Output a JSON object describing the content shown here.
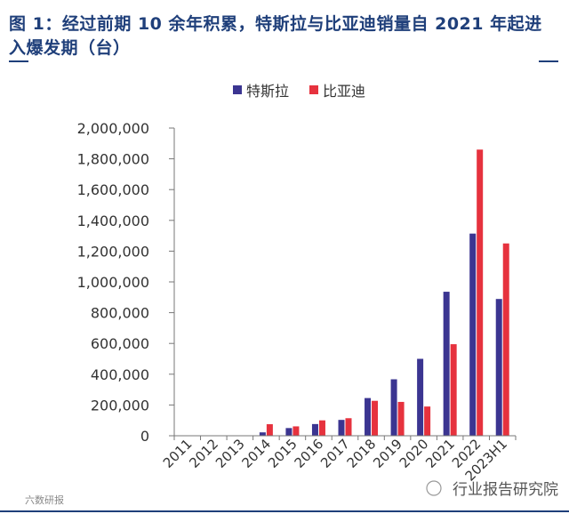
{
  "chart_data": {
    "type": "bar",
    "title": "图 1：经过前期 10 余年积累，特斯拉与比亚迪销量自 2021 年起进入爆发期（台）",
    "categories": [
      "2011",
      "2012",
      "2013",
      "2014",
      "2015",
      "2016",
      "2017",
      "2018",
      "2019",
      "2020",
      "2021",
      "2022",
      "2023H1"
    ],
    "series": [
      {
        "name": "特斯拉",
        "color": "#3b3591",
        "values": [
          0,
          0,
          0,
          22000,
          50000,
          76000,
          103000,
          245000,
          367000,
          500000,
          936000,
          1314000,
          889000
        ]
      },
      {
        "name": "比亚迪",
        "color": "#e6323e",
        "values": [
          0,
          0,
          0,
          75000,
          61000,
          100000,
          114000,
          227000,
          220000,
          190000,
          595000,
          1860000,
          1250000
        ]
      }
    ],
    "ylim": [
      0,
      2000000
    ],
    "yticks": [
      0,
      200000,
      400000,
      600000,
      800000,
      1000000,
      1200000,
      1400000,
      1600000,
      1800000,
      2000000
    ],
    "ytick_labels": [
      "0",
      "200,000",
      "400,000",
      "600,000",
      "800,000",
      "1,000,000",
      "1,200,000",
      "1,400,000",
      "1,600,000",
      "1,800,000",
      "2,000,000"
    ],
    "xlabel": "",
    "ylabel": "",
    "legend_position": "top-center"
  },
  "watermarks": {
    "right": "行业报告研究院",
    "left": "六数研报"
  }
}
